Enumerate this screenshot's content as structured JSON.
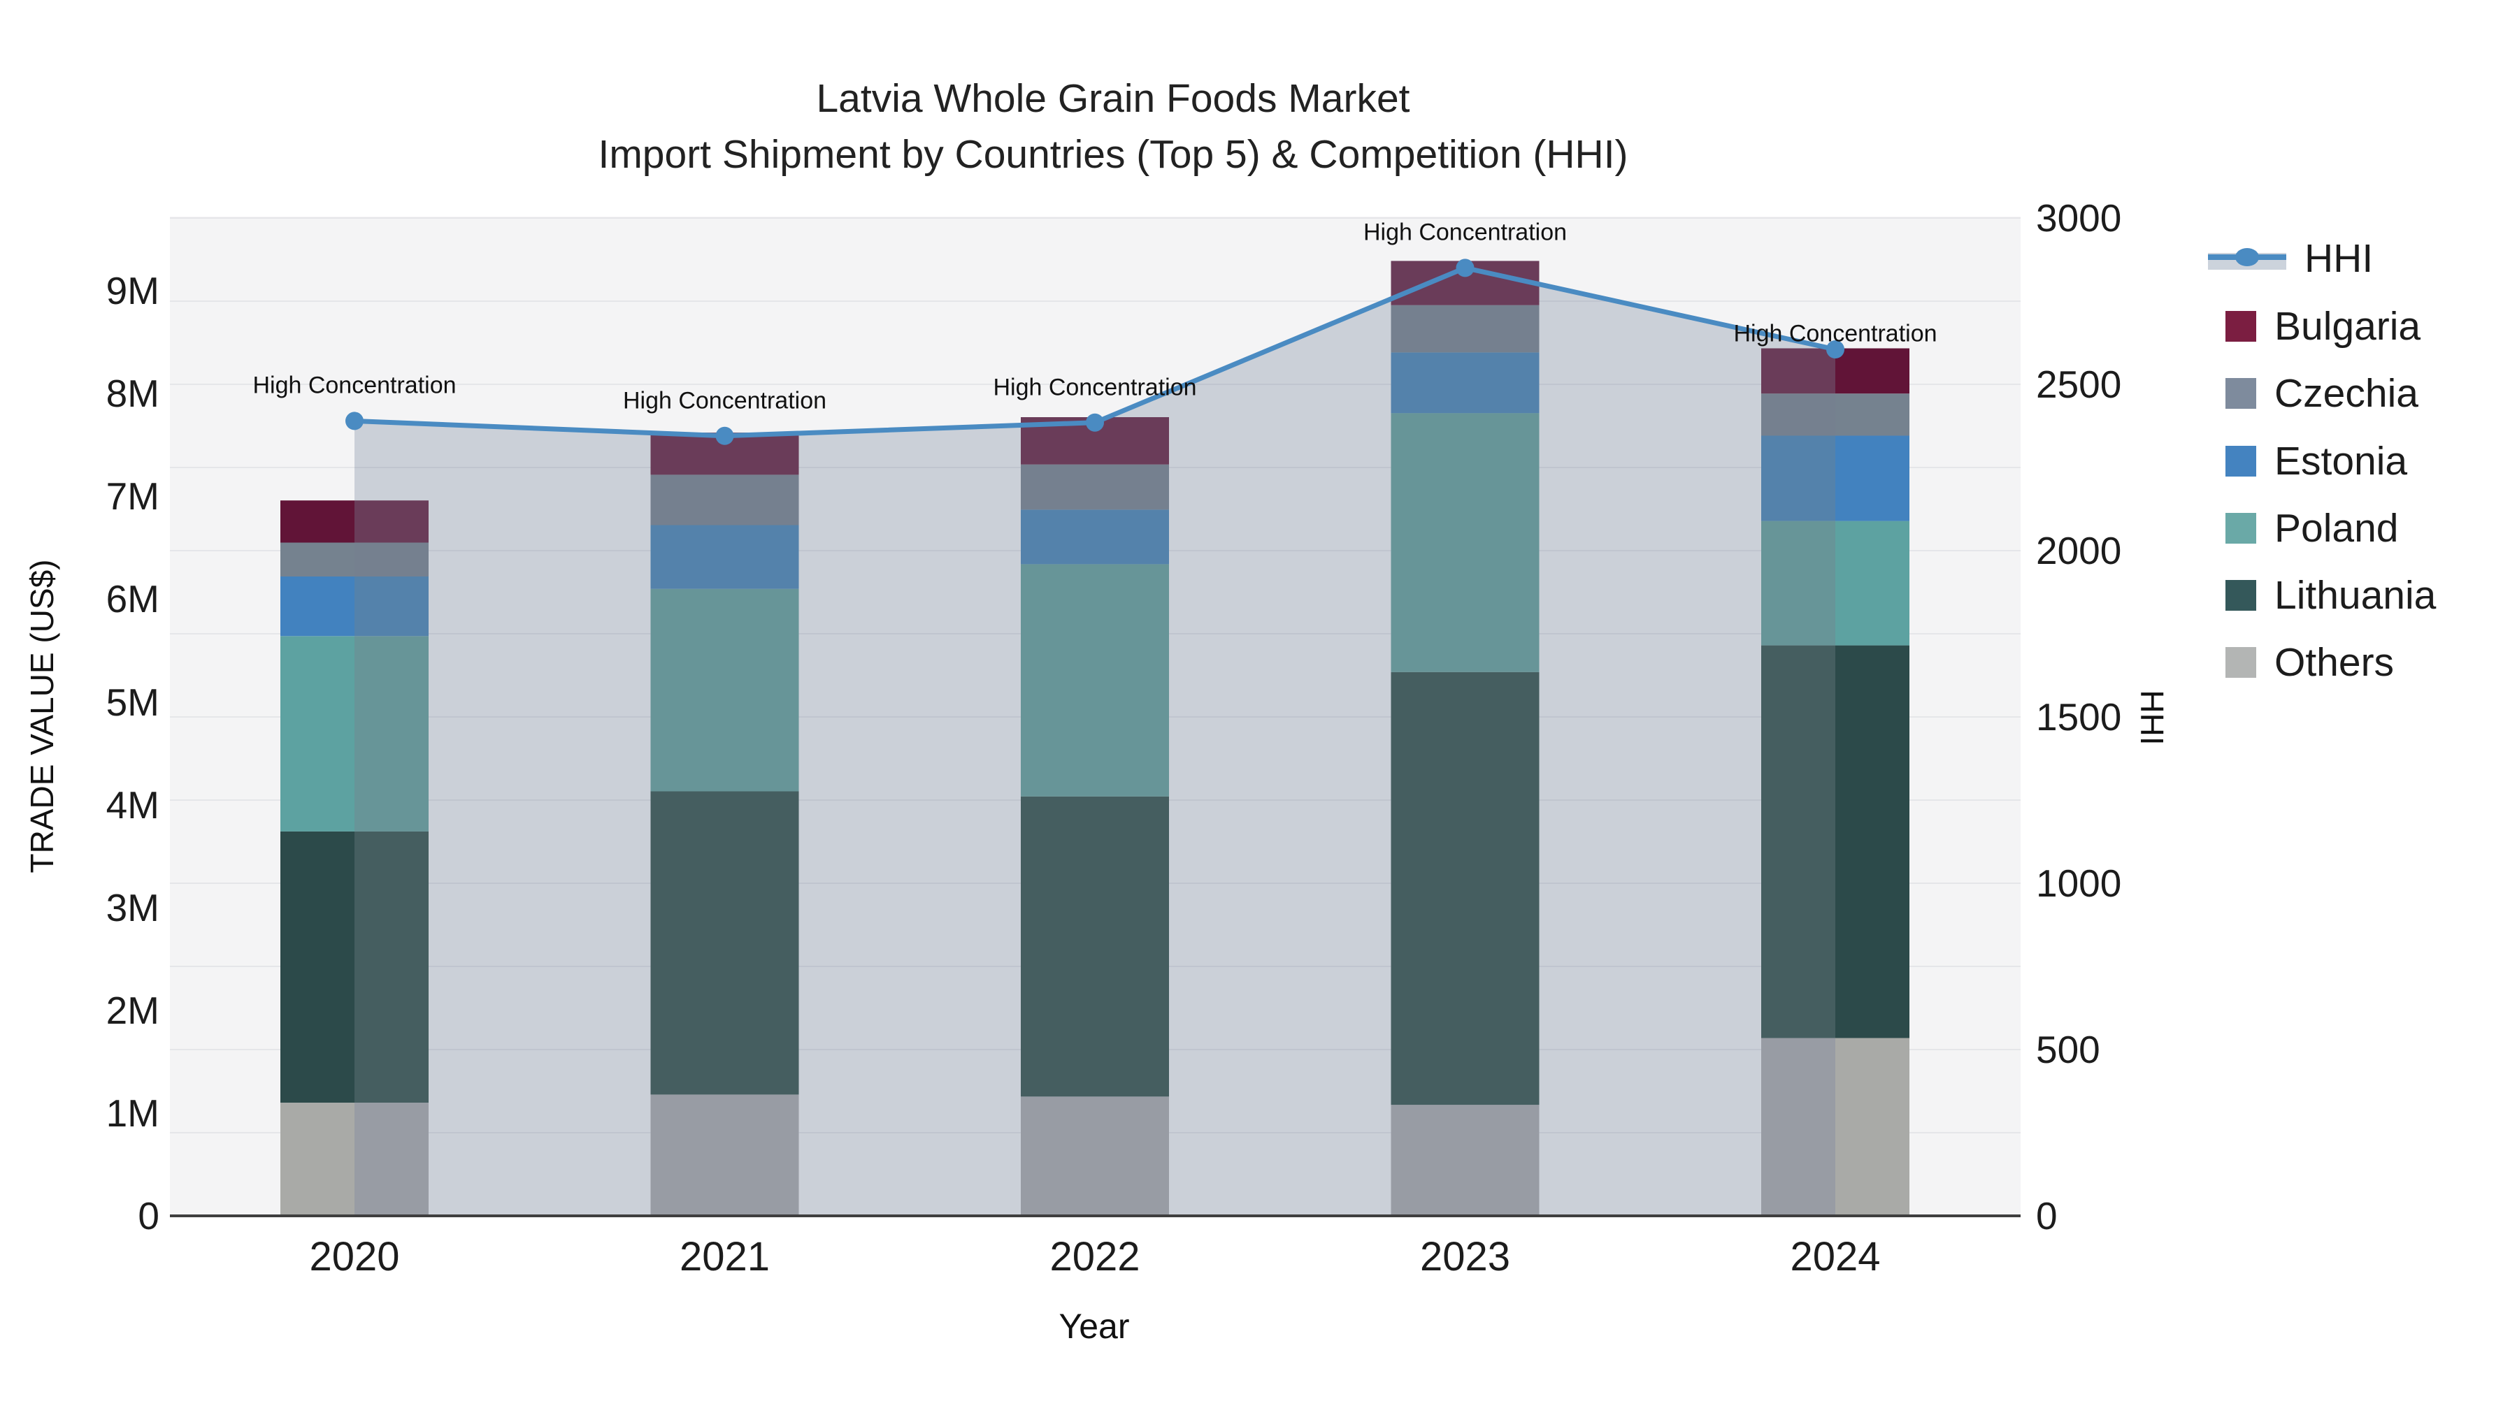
{
  "title": {
    "line1": "Latvia Whole Grain Foods Market",
    "line2": "Import Shipment by Countries (Top 5) & Competition (HHI)"
  },
  "axes": {
    "left": {
      "title": "TRADE VALUE (US$)",
      "tick_labels": [
        "0",
        "1M",
        "2M",
        "3M",
        "4M",
        "5M",
        "6M",
        "7M",
        "8M",
        "9M"
      ],
      "tick_values_musd": [
        0,
        1,
        2,
        3,
        4,
        5,
        6,
        7,
        8,
        9
      ]
    },
    "right": {
      "title": "HHI",
      "tick_labels": [
        "0",
        "500",
        "1000",
        "1500",
        "2000",
        "2500",
        "3000"
      ],
      "tick_values": [
        0,
        500,
        1000,
        1500,
        2000,
        2500,
        3000
      ]
    },
    "x": {
      "title": "Year",
      "tick_labels": [
        "2020",
        "2021",
        "2022",
        "2023",
        "2024"
      ]
    }
  },
  "legend": {
    "items": [
      {
        "label": "HHI",
        "glyph": "line-marker-band",
        "color": "#4a8bc2",
        "band_color": "#ccd3dc"
      },
      {
        "label": "Bulgaria",
        "glyph": "square",
        "color": "#7b1e41"
      },
      {
        "label": "Czechia",
        "glyph": "square",
        "color": "#7e8b9d"
      },
      {
        "label": "Estonia",
        "glyph": "square",
        "color": "#4483c0"
      },
      {
        "label": "Poland",
        "glyph": "square",
        "color": "#6aa9a7"
      },
      {
        "label": "Lithuania",
        "glyph": "square",
        "color": "#34585a"
      },
      {
        "label": "Others",
        "glyph": "square",
        "color": "#b3b5b4"
      }
    ]
  },
  "annotation_text": "High Concentration",
  "colors": {
    "page_bg": "#ffffff",
    "plot_bg": "#f4f4f5",
    "axis_line": "#3f3f3f",
    "grid_line": "rgba(100,110,130,0.10)",
    "hhi_line": "#4a8bc2",
    "hhi_fill": "#cbd0d8",
    "text": "#1c1c1c",
    "bars": {
      "Bulgaria": {
        "vivid": "#611437",
        "muted": "#6a3c59"
      },
      "Czechia": {
        "vivid": "#75828f",
        "muted": "#75808f"
      },
      "Estonia": {
        "vivid": "#4282bf",
        "muted": "#5482ab"
      },
      "Poland": {
        "vivid": "#5da2a1",
        "muted": "#679598"
      },
      "Lithuania": {
        "vivid": "#2c4a4a",
        "muted": "#455e60"
      },
      "Others": {
        "vivid": "#a9aaa7",
        "muted": "#989ca4"
      }
    }
  },
  "chart_data": {
    "type": "bar",
    "subtype": "stacked bars (left axis, trade value) + HHI line with shaded area to zero (right axis)",
    "title": "Latvia Whole Grain Foods Market — Import Shipment by Countries (Top 5) & Competition (HHI)",
    "xlabel": "Year",
    "ylabel": "TRADE VALUE (US$)",
    "y2label": "HHI",
    "categories": [
      "2020",
      "2021",
      "2022",
      "2023",
      "2024"
    ],
    "stack_order_bottom_to_top": [
      "Others",
      "Lithuania",
      "Poland",
      "Estonia",
      "Czechia",
      "Bulgaria"
    ],
    "bar_series": [
      {
        "name": "Bulgaria",
        "values_musd": [
          0.41,
          0.41,
          0.46,
          0.43,
          0.44
        ]
      },
      {
        "name": "Czechia",
        "values_musd": [
          0.33,
          0.49,
          0.44,
          0.46,
          0.41
        ]
      },
      {
        "name": "Estonia",
        "values_musd": [
          0.58,
          0.62,
          0.53,
          0.59,
          0.83
        ]
      },
      {
        "name": "Poland",
        "values_musd": [
          1.9,
          1.97,
          2.26,
          2.52,
          1.21
        ]
      },
      {
        "name": "Lithuania",
        "values_musd": [
          2.64,
          2.95,
          2.92,
          4.21,
          3.82
        ]
      },
      {
        "name": "Others",
        "values_musd": [
          1.1,
          1.18,
          1.16,
          1.08,
          1.73
        ]
      }
    ],
    "bar_totals_musd": [
      6.96,
      7.62,
      7.77,
      9.29,
      8.44
    ],
    "line_series": {
      "name": "HHI",
      "axis": "right",
      "values": [
        2390,
        2345,
        2385,
        2850,
        2605
      ],
      "point_annotations": [
        "High Concentration",
        "High Concentration",
        "High Concentration",
        "High Concentration",
        "High Concentration"
      ],
      "area_fill_span": {
        "from_category_index": 0,
        "to_category_index": 4
      }
    },
    "ylim_musd": [
      0,
      9.7
    ],
    "y2lim": [
      0,
      3000
    ],
    "grid": true,
    "legend_position": "right"
  }
}
